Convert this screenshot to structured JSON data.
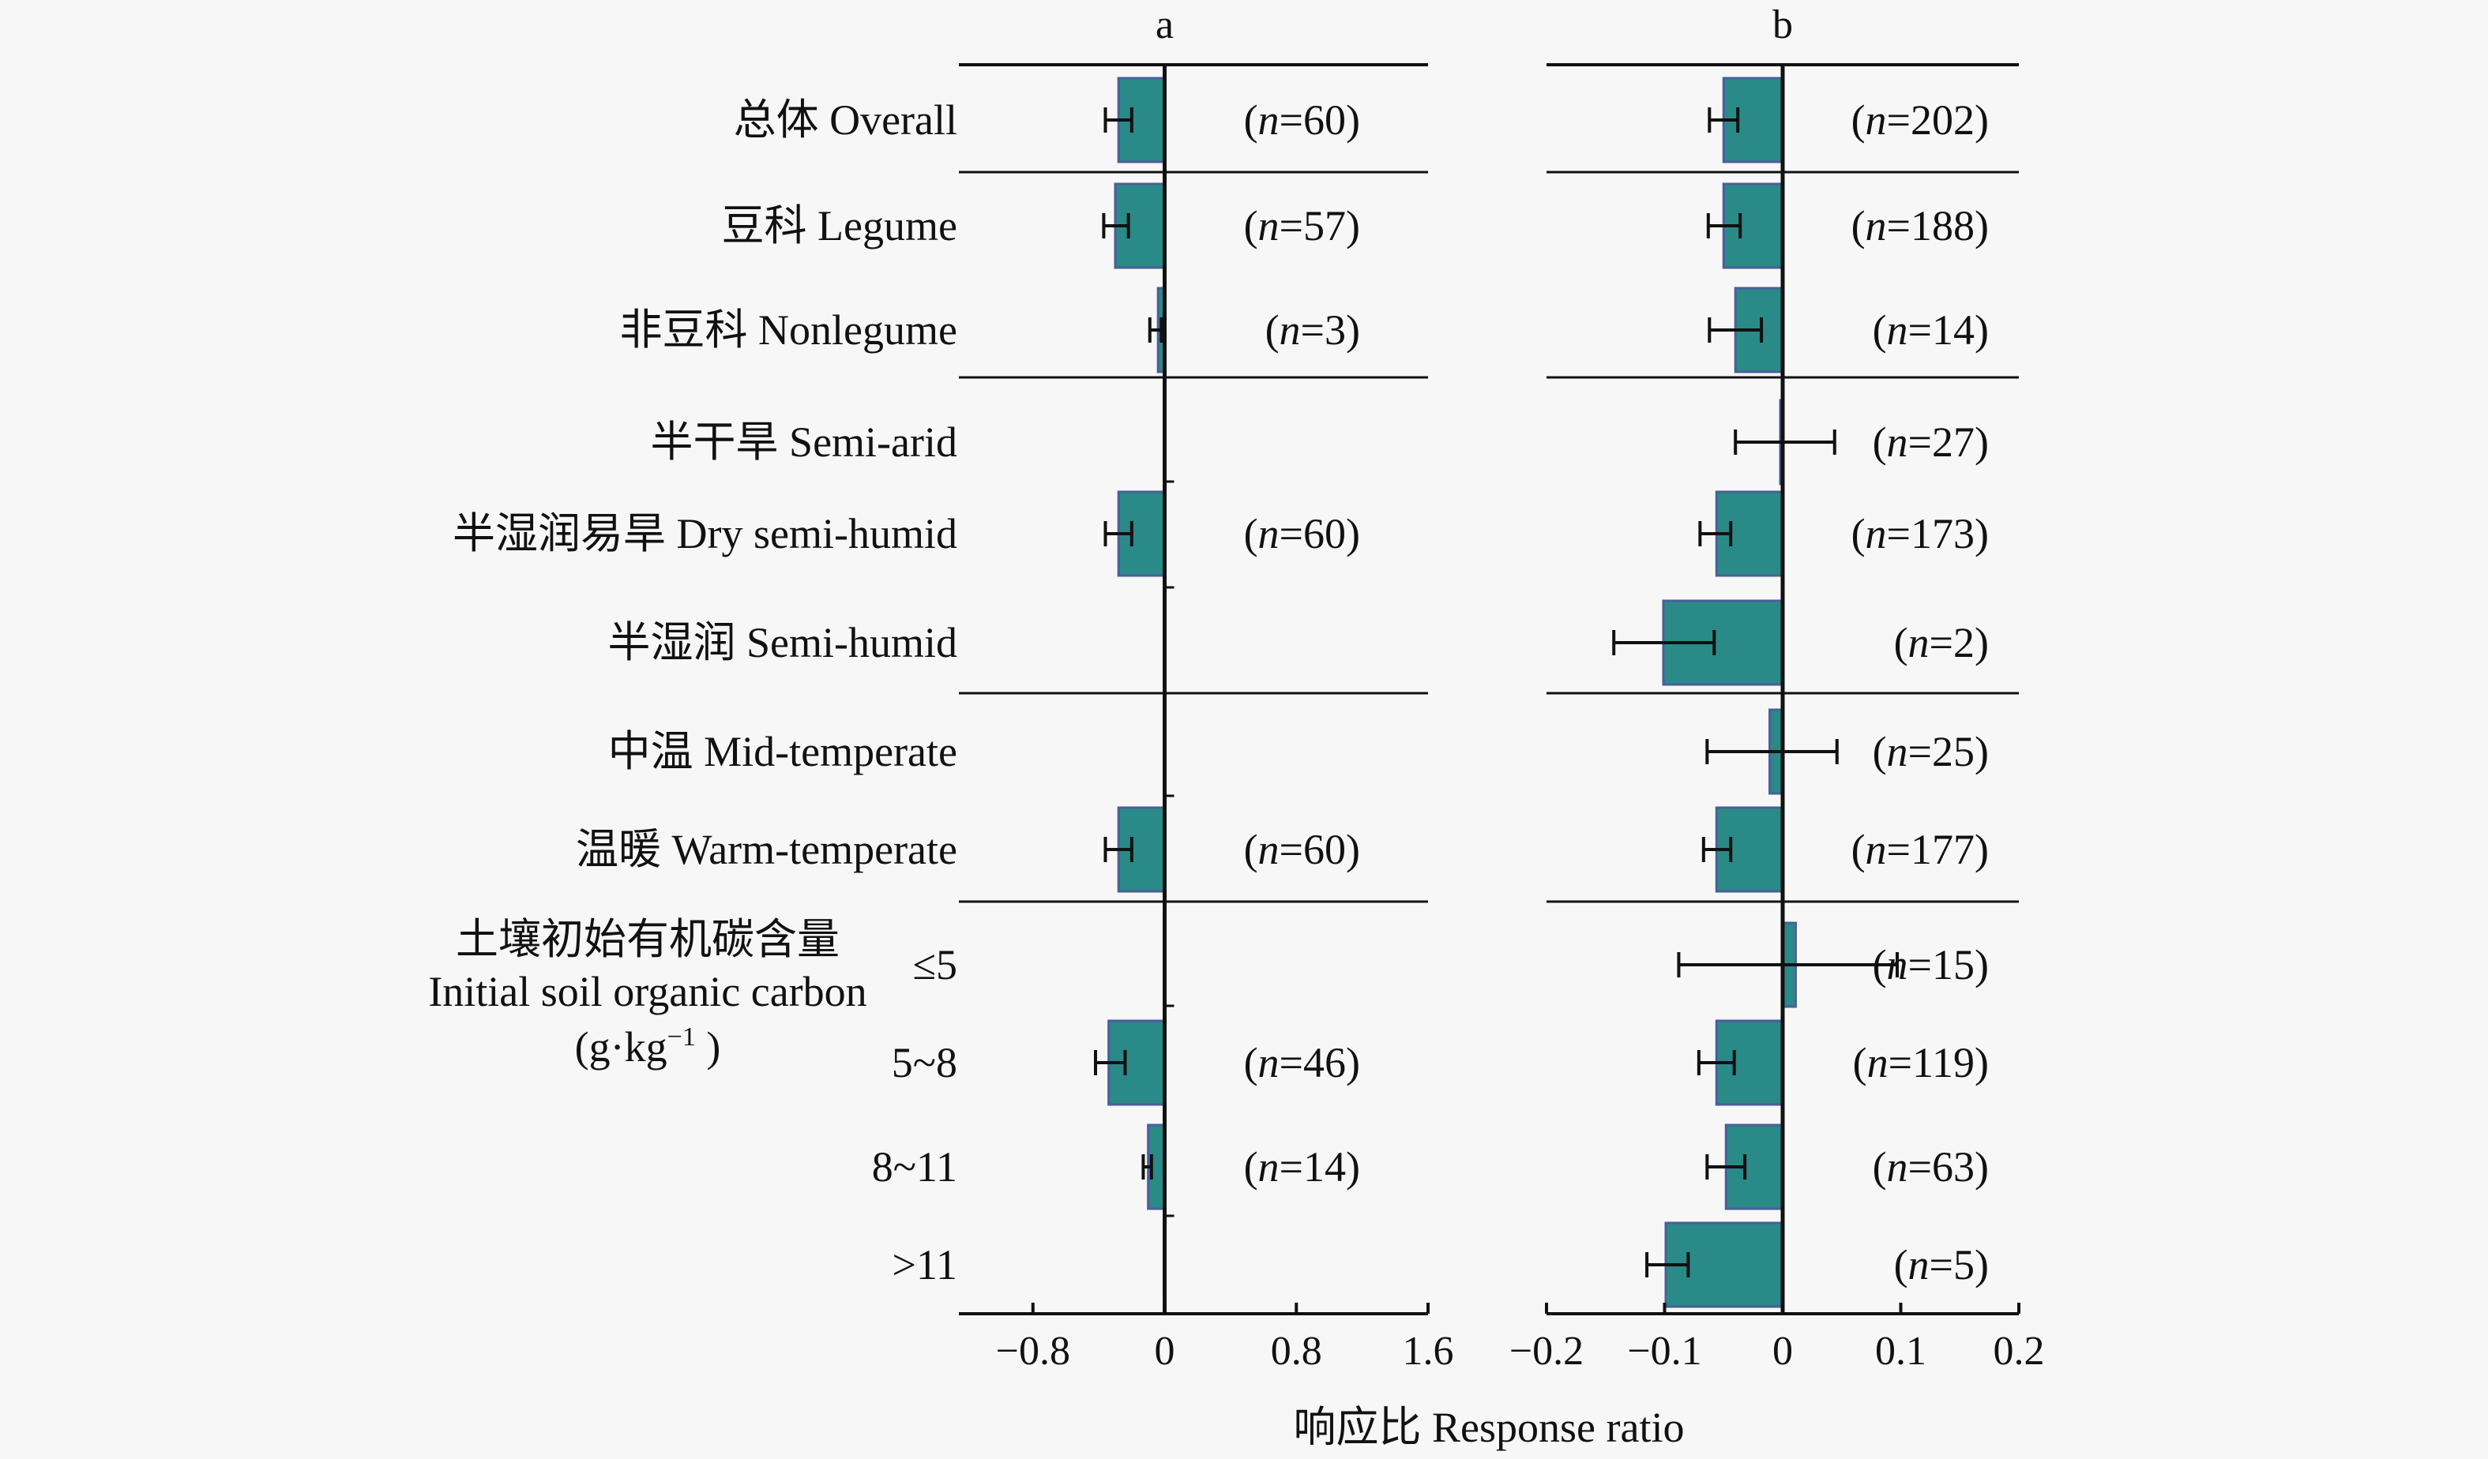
{
  "chart_data": {
    "type": "bar",
    "orientation": "horizontal",
    "xlabel": "响应比 Response ratio",
    "bar_color": "#2a8a87",
    "bar_edge_color": "#4a5f9a",
    "rows": [
      {
        "label": "总体 Overall"
      },
      {
        "label": "豆科 Legume"
      },
      {
        "label": "非豆科 Nonlegume"
      },
      {
        "label": "半干旱 Semi-arid"
      },
      {
        "label": "半湿润易旱 Dry semi-humid"
      },
      {
        "label": "半湿润 Semi-humid"
      },
      {
        "label": "中温 Mid-temperate"
      },
      {
        "label": "温暖 Warm-temperate"
      },
      {
        "label": "≤5"
      },
      {
        "label": "5~8"
      },
      {
        "label": "8~11"
      },
      {
        "label": ">11"
      }
    ],
    "group_label_lines": [
      "土壤初始有机碳含量",
      "Initial soil organic carbon"
    ],
    "group_unit": {
      "prefix": "(g·kg",
      "sup": "−1",
      "suffix": " )"
    },
    "panels": [
      {
        "title": "a",
        "xlim": [
          -1.25,
          1.6
        ],
        "ticks": [
          -0.8,
          0,
          0.8,
          1.6
        ],
        "tick_labels": [
          "−0.8",
          "0",
          "0.8",
          "1.6"
        ],
        "dividers_after": [
          0,
          2,
          5,
          7
        ],
        "values": [
          {
            "mean": -0.28,
            "ci": [
              -0.36,
              -0.2
            ],
            "n": "60"
          },
          {
            "mean": -0.3,
            "ci": [
              -0.37,
              -0.22
            ],
            "n": "57"
          },
          {
            "mean": -0.04,
            "ci": [
              -0.09,
              -0.02
            ],
            "n": "3"
          },
          null,
          {
            "mean": -0.28,
            "ci": [
              -0.36,
              -0.2
            ],
            "n": "60"
          },
          null,
          null,
          {
            "mean": -0.28,
            "ci": [
              -0.36,
              -0.2
            ],
            "n": "60"
          },
          null,
          {
            "mean": -0.34,
            "ci": [
              -0.42,
              -0.24
            ],
            "n": "46"
          },
          {
            "mean": -0.1,
            "ci": [
              -0.13,
              -0.08
            ],
            "n": "14"
          },
          null
        ]
      },
      {
        "title": "b",
        "xlim": [
          -0.2,
          0.2
        ],
        "ticks": [
          -0.2,
          -0.1,
          0,
          0.1,
          0.2
        ],
        "tick_labels": [
          "−0.2",
          "−0.1",
          "0",
          "0.1",
          "0.2"
        ],
        "dividers_after": [
          0,
          2,
          5,
          7
        ],
        "values": [
          {
            "mean": -0.05,
            "ci": [
              -0.062,
              -0.038
            ],
            "n": "202"
          },
          {
            "mean": -0.05,
            "ci": [
              -0.063,
              -0.036
            ],
            "n": "188"
          },
          {
            "mean": -0.04,
            "ci": [
              -0.062,
              -0.018
            ],
            "n": "14"
          },
          {
            "mean": -0.002,
            "ci": [
              -0.04,
              0.044
            ],
            "n": "27"
          },
          {
            "mean": -0.056,
            "ci": [
              -0.07,
              -0.044
            ],
            "n": "173"
          },
          {
            "mean": -0.101,
            "ci": [
              -0.143,
              -0.058
            ],
            "n": "2"
          },
          {
            "mean": -0.011,
            "ci": [
              -0.064,
              0.046
            ],
            "n": "25"
          },
          {
            "mean": -0.056,
            "ci": [
              -0.067,
              -0.044
            ],
            "n": "177"
          },
          {
            "mean": 0.011,
            "ci": [
              -0.088,
              0.097
            ],
            "n": "15"
          },
          {
            "mean": -0.056,
            "ci": [
              -0.071,
              -0.041
            ],
            "n": "119"
          },
          {
            "mean": -0.048,
            "ci": [
              -0.064,
              -0.032
            ],
            "n": "63"
          },
          {
            "mean": -0.099,
            "ci": [
              -0.115,
              -0.08
            ],
            "n": "5"
          }
        ]
      }
    ]
  }
}
